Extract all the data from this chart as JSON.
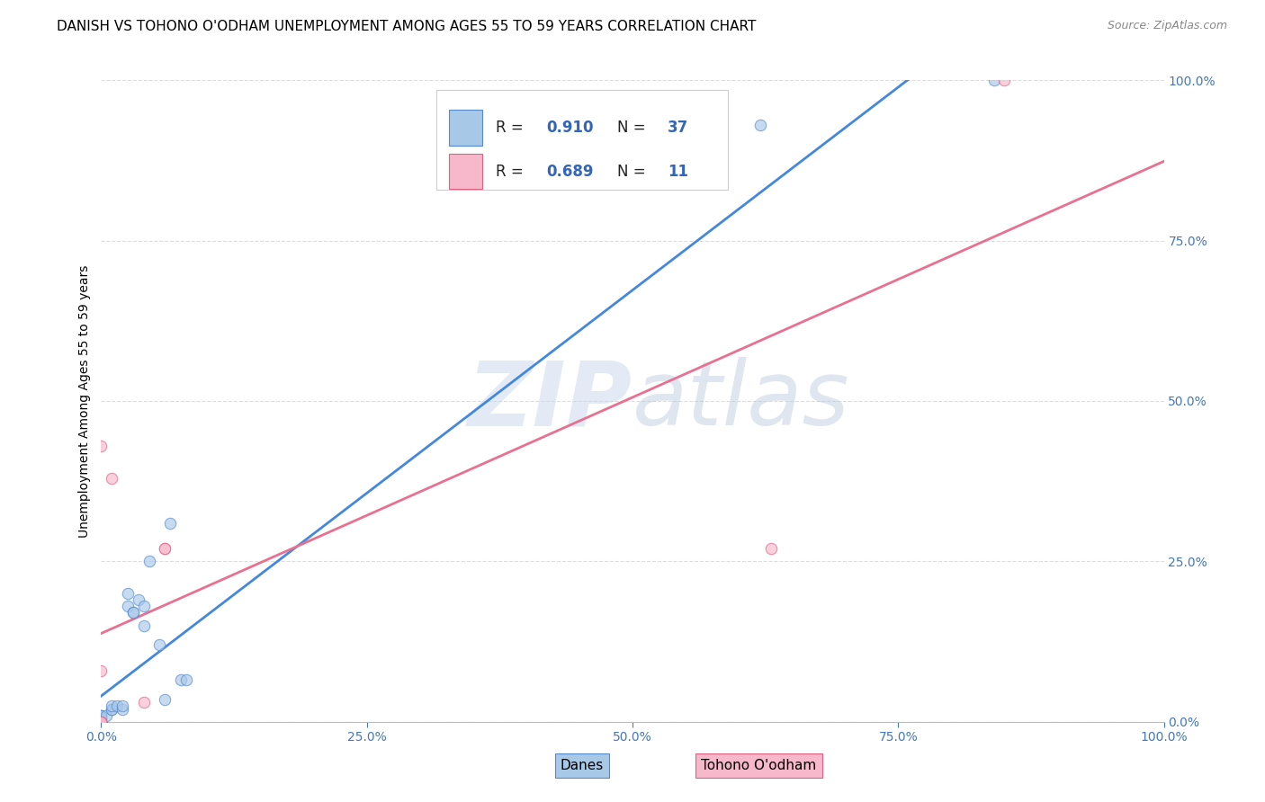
{
  "title": "DANISH VS TOHONO O'ODHAM UNEMPLOYMENT AMONG AGES 55 TO 59 YEARS CORRELATION CHART",
  "source": "Source: ZipAtlas.com",
  "ylabel": "Unemployment Among Ages 55 to 59 years",
  "watermark_zip": "ZIP",
  "watermark_atlas": "atlas",
  "xlim": [
    0,
    1.0
  ],
  "ylim": [
    0,
    1.0
  ],
  "xticks": [
    0.0,
    0.25,
    0.5,
    0.75,
    1.0
  ],
  "yticks": [
    0.0,
    0.25,
    0.5,
    0.75,
    1.0
  ],
  "xtick_labels": [
    "0.0%",
    "25.0%",
    "50.0%",
    "75.0%",
    "100.0%"
  ],
  "ytick_labels": [
    "0.0%",
    "25.0%",
    "50.0%",
    "75.0%",
    "100.0%"
  ],
  "danes_color": "#a8c8e8",
  "danes_edge_color": "#5588cc",
  "tohono_color": "#f8b8cc",
  "tohono_edge_color": "#e06080",
  "danes_line_color": "#4488dd",
  "tohono_line_color": "#e87090",
  "danes_R": 0.91,
  "danes_N": 37,
  "tohono_R": 0.689,
  "tohono_N": 11,
  "danes_x": [
    0.0,
    0.0,
    0.0,
    0.0,
    0.0,
    0.0,
    0.0,
    0.0,
    0.0,
    0.0,
    0.0,
    0.0,
    0.0,
    0.0,
    0.0,
    0.005,
    0.01,
    0.01,
    0.01,
    0.015,
    0.02,
    0.02,
    0.025,
    0.025,
    0.03,
    0.03,
    0.035,
    0.04,
    0.04,
    0.045,
    0.055,
    0.06,
    0.065,
    0.075,
    0.08,
    0.62,
    0.84
  ],
  "danes_y": [
    0.0,
    0.0,
    0.0,
    0.0,
    0.0,
    0.0,
    0.0,
    0.0,
    0.005,
    0.005,
    0.005,
    0.01,
    0.01,
    0.01,
    0.01,
    0.01,
    0.02,
    0.02,
    0.025,
    0.025,
    0.02,
    0.025,
    0.18,
    0.2,
    0.17,
    0.17,
    0.19,
    0.15,
    0.18,
    0.25,
    0.12,
    0.035,
    0.31,
    0.065,
    0.065,
    0.93,
    1.0
  ],
  "tohono_x": [
    0.0,
    0.0,
    0.0,
    0.0,
    0.0,
    0.01,
    0.04,
    0.06,
    0.06,
    0.63,
    0.85
  ],
  "tohono_y": [
    0.0,
    0.0,
    0.0,
    0.08,
    0.43,
    0.38,
    0.03,
    0.27,
    0.27,
    0.27,
    1.0
  ],
  "background_color": "#ffffff",
  "grid_color": "#dddddd",
  "title_fontsize": 11,
  "axis_label_fontsize": 10,
  "tick_fontsize": 10,
  "source_fontsize": 9,
  "marker_size": 80,
  "marker_alpha": 0.65,
  "tick_color": "#4477bb"
}
